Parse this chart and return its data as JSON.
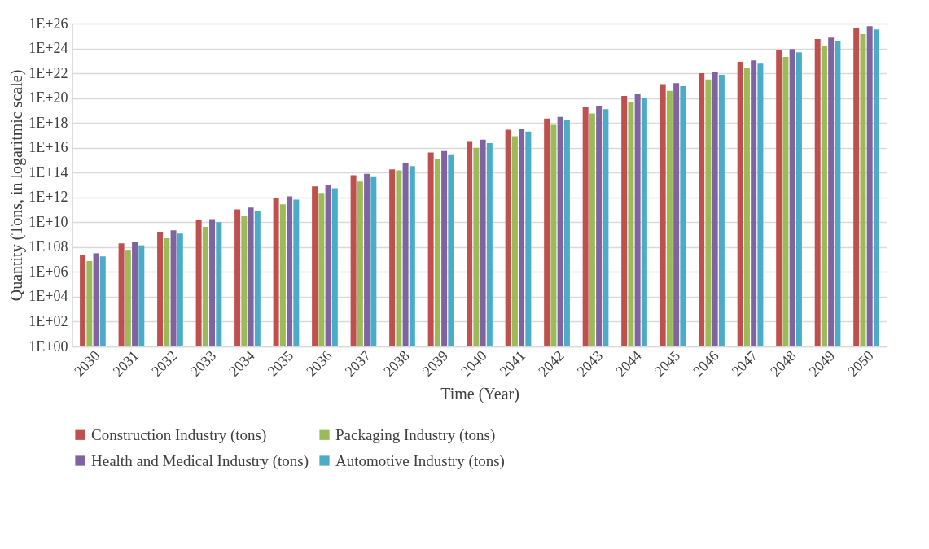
{
  "chart_data": {
    "type": "bar",
    "xlabel": "Time (Year)",
    "ylabel": "Quantity (Tons, in logaritmic scale)",
    "categories": [
      "2030",
      "2031",
      "2032",
      "2033",
      "2034",
      "2035",
      "2036",
      "2037",
      "2038",
      "2039",
      "2040",
      "2041",
      "2042",
      "2043",
      "2044",
      "2045",
      "2046",
      "2047",
      "2048",
      "2049",
      "2050"
    ],
    "series": [
      {
        "name": "Construction Industry (tons)",
        "color": "#c0504d",
        "values": [
          25000000.0,
          200000000.0,
          1700000000.0,
          14000000000.0,
          110000000000.0,
          930000000000.0,
          7600000000000.0,
          62000000000000.0,
          180000000000000.0,
          4200000000000000.0,
          3.4e+16,
          2.8e+17,
          2.3e+18,
          1.9e+19,
          1.5e+20,
          1.3e+21,
          1e+22,
          8.5e+22,
          6.9e+23,
          5.7e+24,
          4.7e+25
        ]
      },
      {
        "name": "Packaging Industry (tons)",
        "color": "#9bbb59",
        "values": [
          7500000.0,
          61000000.0,
          510000000.0,
          4200000000.0,
          34000000000.0,
          280000000000.0,
          2300000000000.0,
          19000000000000.0,
          150000000000000.0,
          1300000000000000.0,
          1e+16,
          8.5e+16,
          6.9e+17,
          5.7e+18,
          4.6e+19,
          3.8e+20,
          3.1e+21,
          2.6e+22,
          2.1e+23,
          1.7e+24,
          1.4e+25
        ]
      },
      {
        "name": "Health and Medical Industry (tons)",
        "color": "#8064a2",
        "values": [
          32000000.0,
          260000000.0,
          2200000000.0,
          18000000000.0,
          150000000000.0,
          1200000000000.0,
          9900000000000.0,
          81000000000000.0,
          630000000000000.0,
          5500000000000000.0,
          4.5e+16,
          3.6e+17,
          3e+18,
          2.4e+19,
          2e+20,
          1.6e+21,
          1.3e+22,
          1.1e+23,
          9e+23,
          7.4e+24,
          6.1e+25
        ]
      },
      {
        "name": "Automotive Industry (tons)",
        "color": "#4bacc6",
        "values": [
          18000000.0,
          140000000.0,
          1200000000.0,
          9900000000.0,
          80000000000.0,
          660000000000.0,
          5400000000000.0,
          44000000000000.0,
          330000000000000.0,
          3000000000000000.0,
          2.4e+16,
          2e+17,
          1.6e+18,
          1.3e+19,
          1.1e+20,
          9e+20,
          7.4e+21,
          6e+22,
          4.9e+23,
          4e+24,
          3.3e+25
        ]
      }
    ],
    "log": true,
    "ylim": [
      1,
      1e+26
    ],
    "yticks": [
      {
        "value": 1,
        "label": "1E+00"
      },
      {
        "value": 100.0,
        "label": "1E+02"
      },
      {
        "value": 10000.0,
        "label": "1E+04"
      },
      {
        "value": 1000000.0,
        "label": "1E+06"
      },
      {
        "value": 100000000.0,
        "label": "1E+08"
      },
      {
        "value": 10000000000.0,
        "label": "1E+10"
      },
      {
        "value": 1000000000000.0,
        "label": "1E+12"
      },
      {
        "value": 100000000000000.0,
        "label": "1E+14"
      },
      {
        "value": 1e+16,
        "label": "1E+16"
      },
      {
        "value": 1e+18,
        "label": "1E+18"
      },
      {
        "value": 1e+20,
        "label": "1E+20"
      },
      {
        "value": 1e+22,
        "label": "1E+22"
      },
      {
        "value": 1e+24,
        "label": "1E+24"
      },
      {
        "value": 1e+26,
        "label": "1E+26"
      }
    ],
    "grid": "y",
    "legend": "bottom"
  }
}
